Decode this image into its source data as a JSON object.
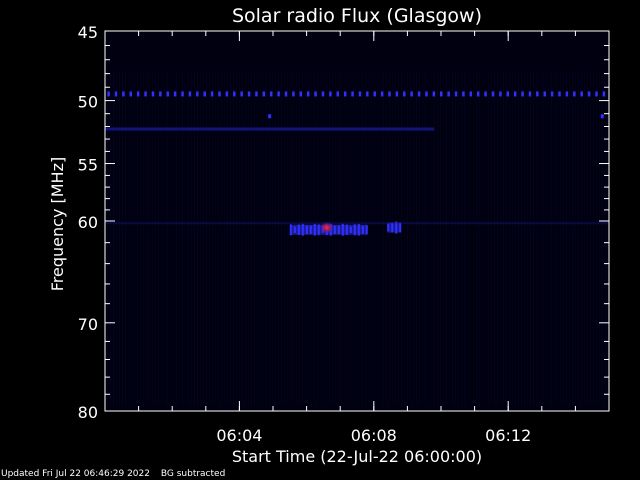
{
  "chart_data": {
    "type": "heatmap",
    "title": "Solar radio Flux (Glasgow)",
    "ylabel": "Frequency [MHz]",
    "xlabel": "Start Time (22-Jul-22 06:00:00)",
    "y_axis": {
      "scale": "log",
      "inverted": true,
      "range_mhz": [
        45,
        80
      ],
      "tick_labels": [
        "45",
        "50",
        "55",
        "60",
        "70",
        "80"
      ],
      "tick_values": [
        45,
        50,
        55,
        60,
        70,
        80
      ]
    },
    "x_axis": {
      "range_min": [
        0,
        15
      ],
      "tick_labels": [
        "06:04",
        "06:08",
        "06:12"
      ],
      "tick_values_min": [
        4,
        8,
        12
      ]
    },
    "grid": false,
    "colors": {
      "background": "#000000",
      "plot_bg": "#000010",
      "axis": "#ffffff",
      "signal_low": "#1a1aa0",
      "signal_mid": "#3030ff",
      "signal_high": "#c02040"
    },
    "features": [
      {
        "kind": "dotted-line",
        "freq_mhz": 49.5,
        "t_start_min": 0,
        "t_end_min": 15,
        "dot_spacing_min": 0.22,
        "intensity": "mid"
      },
      {
        "kind": "band",
        "freq_mhz": 52.2,
        "t_start_min": 0,
        "t_end_min": 9.8,
        "intensity": "low"
      },
      {
        "kind": "blob",
        "freq_mhz": 60.8,
        "t_start_min": 5.5,
        "t_end_min": 7.8,
        "intensity": "mid"
      },
      {
        "kind": "blob",
        "freq_mhz": 60.6,
        "t_start_min": 8.4,
        "t_end_min": 8.8,
        "intensity": "mid"
      },
      {
        "kind": "spot",
        "freq_mhz": 60.6,
        "t_min": 6.6,
        "intensity": "high"
      },
      {
        "kind": "spot",
        "freq_mhz": 51.2,
        "t_min": 4.9,
        "intensity": "mid"
      },
      {
        "kind": "spot",
        "freq_mhz": 51.2,
        "t_min": 14.8,
        "intensity": "mid"
      },
      {
        "kind": "faint-band",
        "freq_mhz": 60.2,
        "t_start_min": 0,
        "t_end_min": 15,
        "intensity": "low"
      }
    ]
  },
  "footer": {
    "updated": "Updated Fri Jul 22 06:46:29 2022",
    "note": "BG subtracted"
  }
}
